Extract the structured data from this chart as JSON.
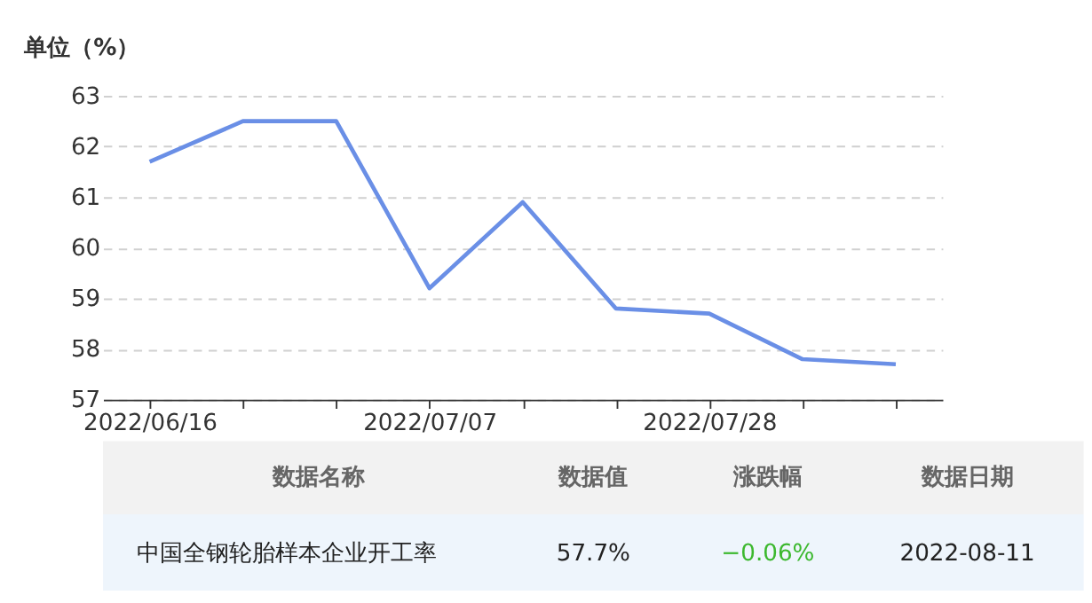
{
  "chart_data": {
    "type": "line",
    "ylabel": "单位（%）",
    "categories": [
      "2022/06/16",
      null,
      null,
      "2022/07/07",
      null,
      null,
      "2022/07/28",
      null,
      null
    ],
    "series": [
      {
        "color": "#6a8fe6",
        "values": [
          61.7,
          62.5,
          62.5,
          59.2,
          60.9,
          58.8,
          58.7,
          57.8,
          57.7
        ]
      }
    ],
    "ylim": [
      57,
      63
    ],
    "yticks": [
      57,
      58,
      59,
      60,
      61,
      62,
      63
    ],
    "grid": "y",
    "annotations": [
      "数据名称",
      "数据值",
      "涨跌幅",
      "数据日期",
      "中国全钢轮胎样本企业开工率",
      "57.7%",
      "−0.06%",
      "2022-08-11"
    ]
  }
}
